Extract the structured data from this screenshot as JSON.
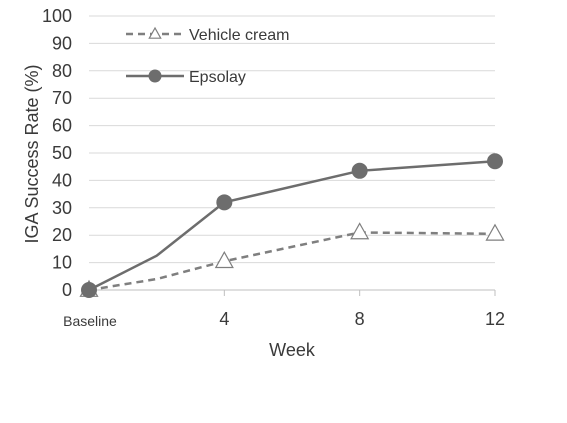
{
  "chart_data": {
    "type": "line",
    "xlabel": "Week",
    "ylabel": "IGA Success Rate (%)",
    "ylim": [
      0,
      100
    ],
    "yticks": [
      0,
      10,
      20,
      30,
      40,
      50,
      60,
      70,
      80,
      90,
      100
    ],
    "xlim": [
      0,
      12
    ],
    "xticks": [
      {
        "value": 0,
        "label": "Baseline"
      },
      {
        "value": 4,
        "label": "4"
      },
      {
        "value": 8,
        "label": "8"
      },
      {
        "value": 12,
        "label": "12"
      }
    ],
    "grid": "horizontal",
    "legend_position": "top-left",
    "series": [
      {
        "name": "Vehicle cream",
        "line_style": "dashed",
        "marker": "open-triangle",
        "color": "#7f7f7f",
        "x": [
          0,
          2,
          4,
          8,
          12
        ],
        "y": [
          0,
          4,
          10.5,
          21,
          20.5
        ],
        "marked": [
          true,
          false,
          true,
          true,
          true
        ]
      },
      {
        "name": "Epsolay",
        "line_style": "solid",
        "marker": "filled-circle",
        "color": "#6d6d6d",
        "x": [
          0,
          2,
          4,
          8,
          12
        ],
        "y": [
          0,
          12.5,
          32,
          43.5,
          47
        ],
        "marked": [
          true,
          false,
          true,
          true,
          true
        ]
      }
    ]
  }
}
